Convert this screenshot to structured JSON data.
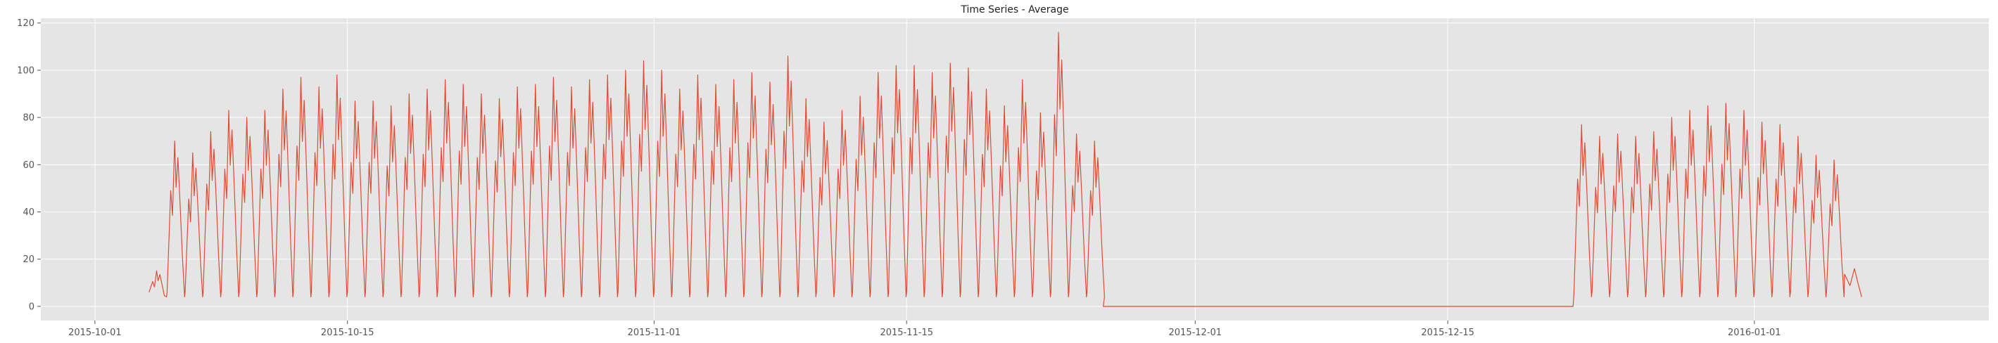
{
  "chart_data": {
    "type": "line",
    "title": "Time Series - Average",
    "xlabel": "",
    "ylabel": "",
    "x_axis_type": "date",
    "xlim": [
      "2015-09-28",
      "2016-01-14"
    ],
    "ylim": [
      -6,
      122
    ],
    "x_ticks": [
      {
        "date": "2015-10-01",
        "label": "2015-10-01"
      },
      {
        "date": "2015-10-15",
        "label": "2015-10-15"
      },
      {
        "date": "2015-11-01",
        "label": "2015-11-01"
      },
      {
        "date": "2015-11-15",
        "label": "2015-11-15"
      },
      {
        "date": "2015-12-01",
        "label": "2015-12-01"
      },
      {
        "date": "2015-12-15",
        "label": "2015-12-15"
      },
      {
        "date": "2016-01-01",
        "label": "2016-01-01"
      }
    ],
    "y_ticks": [
      0,
      20,
      40,
      60,
      80,
      100,
      120
    ],
    "grid": true,
    "legend": "none",
    "colors": {
      "line": "#e24a33",
      "plot_background": "#e5e5e5",
      "grid": "#ffffff"
    },
    "series": [
      {
        "name": "",
        "points": [
          [
            "2015-10-04",
            15
          ],
          [
            "2015-10-05",
            70
          ],
          [
            "2015-10-06",
            65
          ],
          [
            "2015-10-07",
            74
          ],
          [
            "2015-10-08",
            83
          ],
          [
            "2015-10-09",
            80
          ],
          [
            "2015-10-10",
            83
          ],
          [
            "2015-10-11",
            92
          ],
          [
            "2015-10-12",
            97
          ],
          [
            "2015-10-13",
            93
          ],
          [
            "2015-10-14",
            98
          ],
          [
            "2015-10-15",
            87
          ],
          [
            "2015-10-16",
            87
          ],
          [
            "2015-10-17",
            85
          ],
          [
            "2015-10-18",
            90
          ],
          [
            "2015-10-19",
            92
          ],
          [
            "2015-10-20",
            96
          ],
          [
            "2015-10-21",
            94
          ],
          [
            "2015-10-22",
            90
          ],
          [
            "2015-10-23",
            88
          ],
          [
            "2015-10-24",
            93
          ],
          [
            "2015-10-25",
            94
          ],
          [
            "2015-10-26",
            97
          ],
          [
            "2015-10-27",
            93
          ],
          [
            "2015-10-28",
            96
          ],
          [
            "2015-10-29",
            98
          ],
          [
            "2015-10-30",
            100
          ],
          [
            "2015-10-31",
            104
          ],
          [
            "2015-11-01",
            100
          ],
          [
            "2015-11-02",
            92
          ],
          [
            "2015-11-03",
            98
          ],
          [
            "2015-11-04",
            94
          ],
          [
            "2015-11-05",
            96
          ],
          [
            "2015-11-06",
            99
          ],
          [
            "2015-11-07",
            95
          ],
          [
            "2015-11-08",
            106
          ],
          [
            "2015-11-09",
            88
          ],
          [
            "2015-11-10",
            78
          ],
          [
            "2015-11-11",
            83
          ],
          [
            "2015-11-12",
            89
          ],
          [
            "2015-11-13",
            99
          ],
          [
            "2015-11-14",
            102
          ],
          [
            "2015-11-15",
            102
          ],
          [
            "2015-11-16",
            99
          ],
          [
            "2015-11-17",
            103
          ],
          [
            "2015-11-18",
            101
          ],
          [
            "2015-11-19",
            92
          ],
          [
            "2015-11-20",
            85
          ],
          [
            "2015-11-21",
            96
          ],
          [
            "2015-11-22",
            82
          ],
          [
            "2015-11-23",
            116
          ],
          [
            "2015-11-24",
            73
          ],
          [
            "2015-11-25",
            70
          ],
          [
            "2015-12-22",
            77
          ],
          [
            "2015-12-23",
            72
          ],
          [
            "2015-12-24",
            73
          ],
          [
            "2015-12-25",
            72
          ],
          [
            "2015-12-26",
            74
          ],
          [
            "2015-12-27",
            80
          ],
          [
            "2015-12-28",
            83
          ],
          [
            "2015-12-29",
            85
          ],
          [
            "2015-12-30",
            86
          ],
          [
            "2015-12-31",
            83
          ],
          [
            "2016-01-01",
            78
          ],
          [
            "2016-01-02",
            77
          ],
          [
            "2016-01-03",
            72
          ],
          [
            "2016-01-04",
            64
          ],
          [
            "2016-01-05",
            62
          ],
          [
            "2016-01-06",
            16
          ]
        ]
      }
    ]
  }
}
